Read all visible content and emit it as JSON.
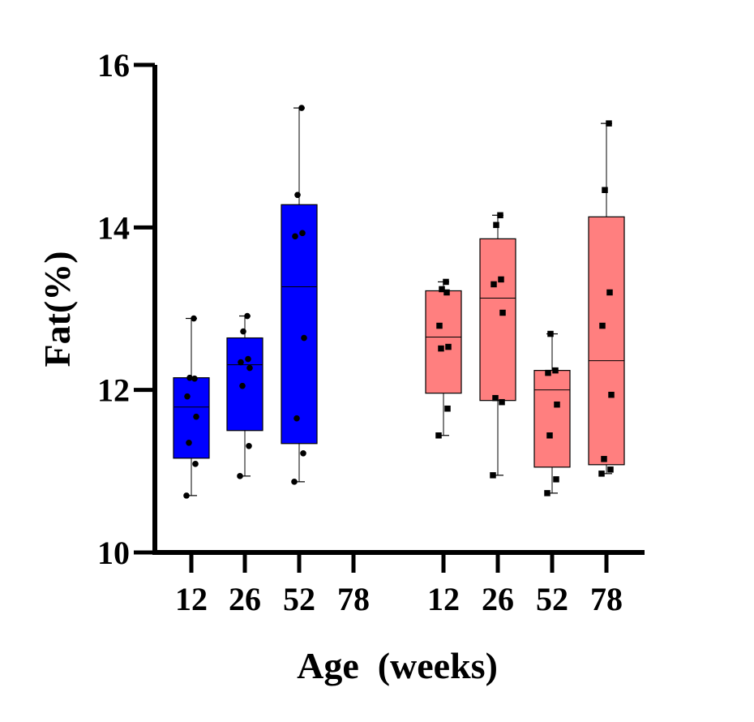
{
  "chart_data": {
    "type": "box",
    "title": "",
    "xlabel": "Age  (weeks)",
    "ylabel": "Fat(%)",
    "ylim": [
      10,
      16
    ],
    "y_ticks": [
      10,
      12,
      14,
      16
    ],
    "grid": false,
    "legend": "none",
    "colors": {
      "group1": "#0000FF",
      "group2": "#FF7F7F",
      "axis": "#000000",
      "points": "#000000"
    },
    "categories": [
      "12",
      "26",
      "52",
      "78",
      "12",
      "26",
      "52",
      "78"
    ],
    "boxes": [
      {
        "label": "12",
        "group": 1,
        "marker": "circle",
        "min": 10.7,
        "q1": 11.16,
        "median": 11.79,
        "q3": 12.15,
        "max": 12.88,
        "points": [
          10.7,
          11.09,
          11.35,
          11.67,
          11.92,
          12.14,
          12.15,
          12.88
        ]
      },
      {
        "label": "26",
        "group": 1,
        "marker": "circle",
        "min": 10.94,
        "q1": 11.5,
        "median": 12.31,
        "q3": 12.64,
        "max": 12.91,
        "points": [
          10.94,
          11.31,
          12.05,
          12.27,
          12.34,
          12.38,
          12.72,
          12.91
        ]
      },
      {
        "label": "52",
        "group": 1,
        "marker": "circle",
        "min": 10.87,
        "q1": 11.34,
        "median": 13.27,
        "q3": 14.28,
        "max": 15.47,
        "points": [
          10.87,
          11.22,
          11.65,
          12.64,
          13.89,
          13.93,
          14.4,
          15.47
        ]
      },
      {
        "label": "78",
        "group": 1,
        "marker": "circle",
        "points": []
      },
      {
        "label": "12",
        "group": 2,
        "marker": "square",
        "min": 11.44,
        "q1": 11.96,
        "median": 12.65,
        "q3": 13.22,
        "max": 13.33,
        "points": [
          11.44,
          11.77,
          12.51,
          12.53,
          12.79,
          13.2,
          13.24,
          13.33
        ]
      },
      {
        "label": "26",
        "group": 2,
        "marker": "square",
        "min": 10.95,
        "q1": 11.87,
        "median": 13.13,
        "q3": 13.86,
        "max": 14.15,
        "points": [
          10.95,
          11.85,
          11.9,
          12.95,
          13.3,
          13.36,
          14.03,
          14.15
        ]
      },
      {
        "label": "52",
        "group": 2,
        "marker": "square",
        "min": 10.73,
        "q1": 11.05,
        "median": 12.0,
        "q3": 12.24,
        "max": 12.69,
        "points": [
          10.73,
          10.9,
          11.44,
          11.82,
          12.21,
          12.24,
          12.69
        ]
      },
      {
        "label": "78",
        "group": 2,
        "marker": "square",
        "min": 10.97,
        "q1": 11.08,
        "median": 12.36,
        "q3": 14.13,
        "max": 15.28,
        "points": [
          10.97,
          11.02,
          11.15,
          11.94,
          12.79,
          13.2,
          14.46,
          15.28
        ]
      }
    ]
  }
}
